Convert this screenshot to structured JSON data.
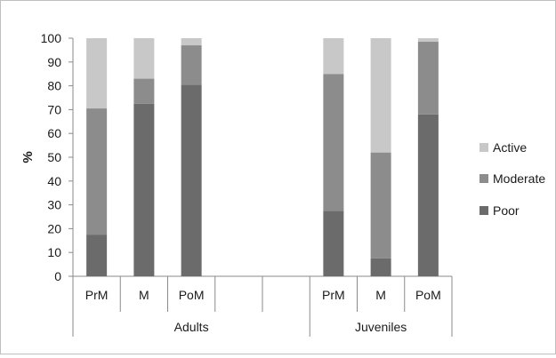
{
  "chart_data": {
    "type": "bar",
    "stacked": true,
    "ylabel": "%",
    "ylim": [
      0,
      100
    ],
    "yticks": [
      0,
      10,
      20,
      30,
      40,
      50,
      60,
      70,
      80,
      90,
      100
    ],
    "grid": false,
    "legend_position": "right",
    "groups": [
      {
        "label": "Adults",
        "categories": [
          "PrM",
          "M",
          "PoM",
          "",
          ""
        ]
      },
      {
        "label": "Juveniles",
        "categories": [
          "PrM",
          "M",
          "PoM"
        ]
      }
    ],
    "categories": [
      "PrM",
      "M",
      "PoM",
      "",
      "",
      "PrM",
      "M",
      "PoM"
    ],
    "series": [
      {
        "name": "Poor",
        "color": "#6b6b6b",
        "values": [
          17.5,
          72.5,
          80.5,
          null,
          null,
          27.5,
          7.5,
          68
        ]
      },
      {
        "name": "Moderate",
        "color": "#8c8c8c",
        "values": [
          53,
          10.5,
          16.5,
          null,
          null,
          57.5,
          44.5,
          30.5
        ]
      },
      {
        "name": "Active",
        "color": "#c8c8c8",
        "values": [
          29.5,
          17,
          3,
          null,
          null,
          15,
          48,
          1.5
        ]
      }
    ],
    "legend_order": [
      "Active",
      "Moderate",
      "Poor"
    ]
  }
}
